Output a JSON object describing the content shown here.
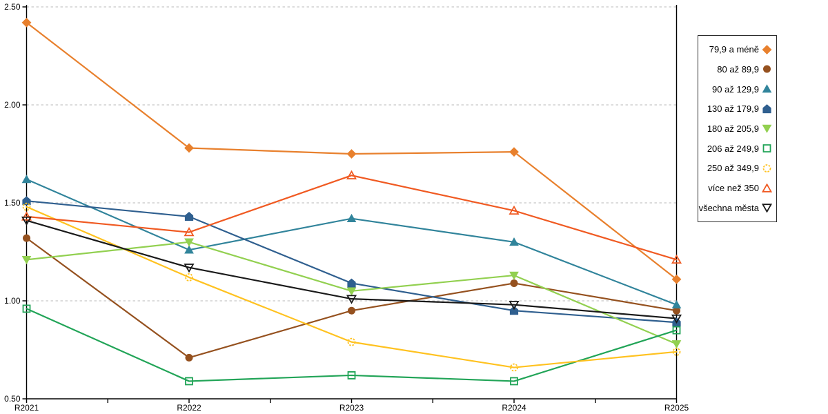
{
  "chart_data": {
    "type": "line",
    "title": "",
    "xlabel": "",
    "ylabel": "",
    "x_categories": [
      "R2021",
      "R2022",
      "R2023",
      "R2024",
      "R2025"
    ],
    "y_tick_labels": [
      "0.50",
      "1.00",
      "1.50",
      "2.00",
      "2.50"
    ],
    "y_ticks": [
      0.5,
      1.0,
      1.5,
      2.0,
      2.5
    ],
    "ylim": [
      0.5,
      2.5
    ],
    "grid": "horizontal dashed gridlines at 1.00, 1.50, 2.00, 2.50",
    "legend_position": "right",
    "background_color": "#FFFFFF",
    "axis_color": "#000000",
    "gridline_color": "#C8C8C8",
    "legend_border_color": "#2B2B2B",
    "series": [
      {
        "name": "79,9 a méně",
        "color": "#E8802D",
        "marker": "diamond",
        "marker_style": "filled",
        "values": [
          2.42,
          1.78,
          1.75,
          1.76,
          1.11
        ]
      },
      {
        "name": "80 až 89,9",
        "color": "#95511F",
        "marker": "circle",
        "marker_style": "filled",
        "values": [
          1.32,
          0.71,
          0.95,
          1.09,
          0.95
        ]
      },
      {
        "name": "90 až 129,9",
        "color": "#31849B",
        "marker": "triangle-up",
        "marker_style": "filled",
        "values": [
          1.62,
          1.26,
          1.42,
          1.3,
          0.98
        ]
      },
      {
        "name": "130 až 179,9",
        "color": "#2F5F8F",
        "marker": "pentagon",
        "marker_style": "filled",
        "values": [
          1.51,
          1.43,
          1.09,
          0.95,
          0.89
        ]
      },
      {
        "name": "180 až 205,9",
        "color": "#92D050",
        "marker": "triangle-down",
        "marker_style": "filled",
        "values": [
          1.21,
          1.3,
          1.05,
          1.13,
          0.78
        ]
      },
      {
        "name": "206 až 249,9",
        "color": "#21A457",
        "marker": "square",
        "marker_style": "open",
        "values": [
          0.96,
          0.59,
          0.62,
          0.59,
          0.85
        ]
      },
      {
        "name": "250 až 349,9",
        "color": "#FFC220",
        "marker": "circle",
        "marker_style": "open-dashed",
        "values": [
          1.48,
          1.12,
          0.79,
          0.66,
          0.74
        ]
      },
      {
        "name": "více než 350",
        "color": "#F05A22",
        "marker": "triangle-up",
        "marker_style": "open",
        "values": [
          1.43,
          1.35,
          1.64,
          1.46,
          1.21
        ]
      },
      {
        "name": "všechna města",
        "color": "#1A1A1A",
        "marker": "triangle-down",
        "marker_style": "open",
        "values": [
          1.41,
          1.17,
          1.01,
          0.98,
          0.91
        ]
      }
    ]
  }
}
